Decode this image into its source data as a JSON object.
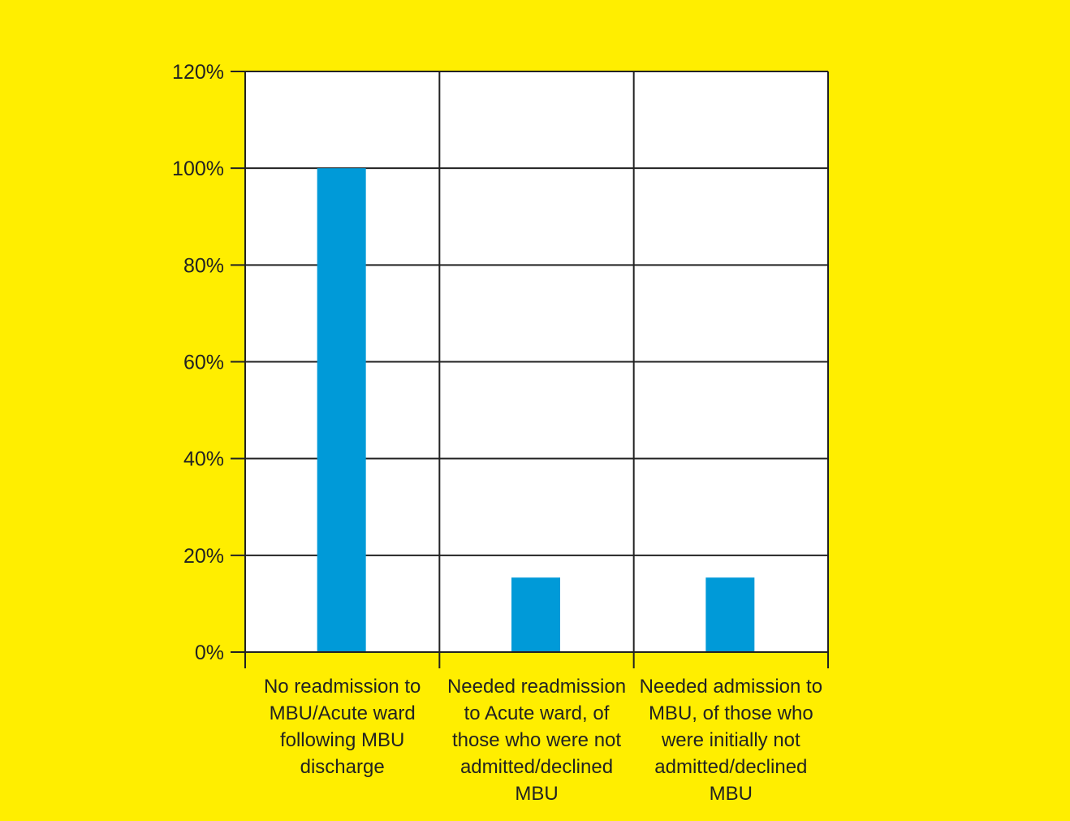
{
  "chart_data": {
    "type": "bar",
    "categories": [
      "No readmission to MBU/Acute ward following MBU discharge",
      "Needed readmission to Acute ward, of those who were not admitted/declined MBU",
      "Needed admission to MBU, of those who were initially not admitted/declined MBU"
    ],
    "series": [
      {
        "values": [
          100,
          15.4,
          15.4
        ]
      }
    ],
    "ylim": [
      0,
      120
    ],
    "yticks": [
      0,
      20,
      40,
      60,
      80,
      100,
      120
    ],
    "ytick_labels": [
      "0%",
      "20%",
      "40%",
      "60%",
      "80%",
      "100%",
      "120%"
    ],
    "title": "",
    "xlabel": "",
    "ylabel": "",
    "grid": true,
    "legend": "none",
    "colors": {
      "bar": "#009AD8",
      "background": "#FFEE00",
      "plot_area": "#FFFFFF",
      "axis": "#222222"
    }
  }
}
